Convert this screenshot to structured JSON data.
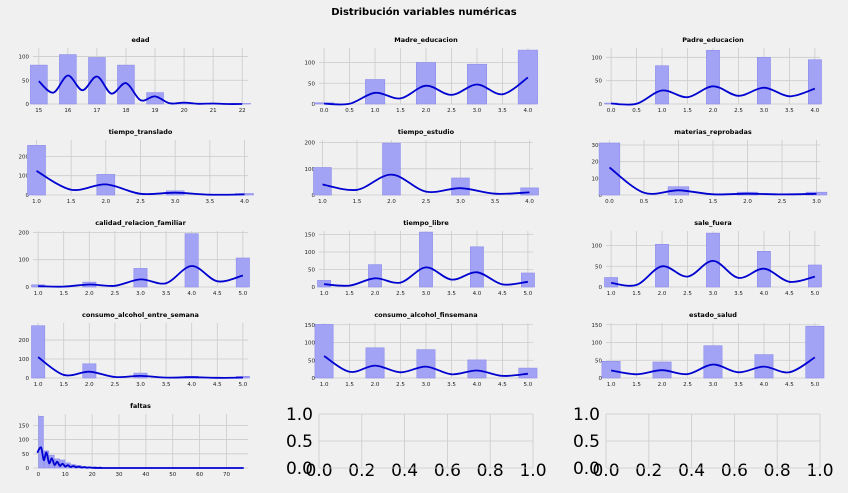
{
  "figure": {
    "title": "Distribución variables numéricas",
    "bar_color": "#a3a3f5",
    "kde_color": "#0000d0",
    "background": "#f0f0f0"
  },
  "chart_data": [
    {
      "type": "bar",
      "title": "edad",
      "x": [
        15,
        16,
        17,
        18,
        19,
        20,
        21,
        22
      ],
      "values": [
        82,
        104,
        98,
        82,
        24,
        3,
        1,
        1
      ],
      "kde": [
        48,
        60,
        58,
        44,
        16,
        3,
        1,
        0
      ],
      "xlim": [
        14.8,
        22.2
      ],
      "ylim": [
        0,
        118
      ],
      "xticks": [
        "15",
        "16",
        "17",
        "18",
        "19",
        "20",
        "21",
        "22"
      ],
      "yticks": [
        0,
        50,
        100
      ],
      "bin_width": 0.58
    },
    {
      "type": "bar",
      "title": "Madre_educacion",
      "x": [
        0,
        1,
        2,
        3,
        4
      ],
      "values": [
        3,
        59,
        100,
        96,
        130
      ],
      "kde": [
        1,
        27,
        44,
        47,
        64
      ],
      "xlim": [
        -0.1,
        4.1
      ],
      "ylim": [
        0,
        135
      ],
      "xticks": [
        "0.0",
        "0.5",
        "1.0",
        "1.5",
        "2.0",
        "2.5",
        "3.0",
        "3.5",
        "4.0"
      ],
      "yticks": [
        0,
        50,
        100
      ],
      "bin_width": 0.38
    },
    {
      "type": "bar",
      "title": "Padre_educacion",
      "x": [
        0,
        1,
        2,
        3,
        4
      ],
      "values": [
        2,
        82,
        115,
        100,
        95
      ],
      "kde": [
        1,
        29,
        38,
        35,
        33
      ],
      "xlim": [
        -0.1,
        4.1
      ],
      "ylim": [
        0,
        120
      ],
      "xticks": [
        "0.0",
        "0.5",
        "1.0",
        "1.5",
        "2.0",
        "2.5",
        "3.0",
        "3.5",
        "4.0"
      ],
      "yticks": [
        0,
        50,
        100
      ],
      "bin_width": 0.26
    },
    {
      "type": "bar",
      "title": "tiempo_translado",
      "x": [
        1,
        2,
        3,
        4
      ],
      "values": [
        257,
        107,
        22,
        8
      ],
      "kde": [
        125,
        55,
        12,
        3
      ],
      "xlim": [
        0.95,
        4.05
      ],
      "ylim": [
        0,
        285
      ],
      "xticks": [
        "1.0",
        "1.5",
        "2.0",
        "2.5",
        "3.0",
        "3.5",
        "4.0"
      ],
      "yticks": [
        0,
        100,
        200
      ],
      "bin_width": 0.26
    },
    {
      "type": "bar",
      "title": "tiempo_estudio",
      "x": [
        1,
        2,
        3,
        4
      ],
      "values": [
        105,
        198,
        65,
        27
      ],
      "kde": [
        40,
        78,
        26,
        10
      ],
      "xlim": [
        0.95,
        4.05
      ],
      "ylim": [
        0,
        210
      ],
      "xticks": [
        "1.0",
        "1.5",
        "2.0",
        "2.5",
        "3.0",
        "3.5",
        "4.0"
      ],
      "yticks": [
        0,
        100,
        200
      ],
      "bin_width": 0.26
    },
    {
      "type": "bar",
      "title": "materias_reprobadas",
      "x": [
        0,
        1,
        2,
        3
      ],
      "values": [
        312,
        50,
        17,
        17
      ],
      "kde": [
        165,
        28,
        8,
        7
      ],
      "xlim": [
        -0.05,
        3.05
      ],
      "ylim": [
        0,
        330
      ],
      "xticks": [
        "0.0",
        "0.5",
        "1.0",
        "1.5",
        "2.0",
        "2.5",
        "3.0"
      ],
      "yticks": [
        0,
        100,
        200,
        300
      ],
      "bin_width": 0.3
    },
    {
      "type": "bar",
      "title": "calidad_relacion_familiar",
      "x": [
        1,
        2,
        3,
        4,
        5
      ],
      "values": [
        8,
        18,
        68,
        195,
        106
      ],
      "kde": [
        3,
        9,
        28,
        77,
        42
      ],
      "xlim": [
        0.9,
        5.1
      ],
      "ylim": [
        0,
        205
      ],
      "xticks": [
        "1.0",
        "1.5",
        "2.0",
        "2.5",
        "3.0",
        "3.5",
        "4.0",
        "4.5",
        "5.0"
      ],
      "yticks": [
        0,
        100,
        200
      ],
      "bin_width": 0.26
    },
    {
      "type": "bar",
      "title": "tiempo_libre",
      "x": [
        1,
        2,
        3,
        4,
        5
      ],
      "values": [
        19,
        64,
        157,
        115,
        40
      ],
      "kde": [
        8,
        25,
        56,
        42,
        15
      ],
      "xlim": [
        0.9,
        5.1
      ],
      "ylim": [
        0,
        160
      ],
      "xticks": [
        "1.0",
        "1.5",
        "2.0",
        "2.5",
        "3.0",
        "3.5",
        "4.0",
        "4.5",
        "5.0"
      ],
      "yticks": [
        0,
        50,
        100,
        150
      ],
      "bin_width": 0.26
    },
    {
      "type": "bar",
      "title": "sale_fuera",
      "x": [
        1,
        2,
        3,
        4,
        5
      ],
      "values": [
        23,
        103,
        130,
        86,
        53
      ],
      "kde": [
        10,
        50,
        63,
        44,
        25
      ],
      "xlim": [
        0.9,
        5.1
      ],
      "ylim": [
        0,
        135
      ],
      "xticks": [
        "1.0",
        "1.5",
        "2.0",
        "2.5",
        "3.0",
        "3.5",
        "4.0",
        "4.5",
        "5.0"
      ],
      "yticks": [
        0,
        50,
        100
      ],
      "bin_width": 0.26
    },
    {
      "type": "bar",
      "title": "consumo_alcohol_entre_semana",
      "x": [
        1,
        2,
        3,
        4,
        5
      ],
      "values": [
        276,
        75,
        26,
        9,
        9
      ],
      "kde": [
        110,
        33,
        11,
        4,
        2
      ],
      "xlim": [
        0.9,
        5.1
      ],
      "ylim": [
        0,
        290
      ],
      "xticks": [
        "1.0",
        "1.5",
        "2.0",
        "2.5",
        "3.0",
        "3.5",
        "4.0",
        "4.5",
        "5.0"
      ],
      "yticks": [
        0,
        100,
        200
      ],
      "bin_width": 0.26
    },
    {
      "type": "bar",
      "title": "consumo_alcohol_finsemana",
      "x": [
        1,
        2,
        3,
        4,
        5
      ],
      "values": [
        151,
        85,
        80,
        51,
        28
      ],
      "kde": [
        62,
        35,
        32,
        21,
        12
      ],
      "xlim": [
        0.9,
        5.1
      ],
      "ylim": [
        0,
        155
      ],
      "xticks": [
        "1.0",
        "1.5",
        "2.0",
        "2.5",
        "3.0",
        "3.5",
        "4.0",
        "4.5",
        "5.0"
      ],
      "yticks": [
        0,
        50,
        100,
        150
      ],
      "bin_width": 0.36
    },
    {
      "type": "bar",
      "title": "estado_salud",
      "x": [
        1,
        2,
        3,
        4,
        5
      ],
      "values": [
        47,
        45,
        91,
        66,
        146
      ],
      "kde": [
        21,
        22,
        38,
        32,
        58
      ],
      "xlim": [
        0.9,
        5.1
      ],
      "ylim": [
        0,
        155
      ],
      "xticks": [
        "1.0",
        "1.5",
        "2.0",
        "2.5",
        "3.0",
        "3.5",
        "4.0",
        "4.5",
        "5.0"
      ],
      "yticks": [
        0,
        50,
        100,
        150
      ],
      "bin_width": 0.36
    },
    {
      "type": "bar",
      "title": "faltas",
      "x": [
        1,
        3,
        5,
        7,
        9,
        11,
        13,
        15,
        17,
        19,
        21,
        23,
        25
      ],
      "values": [
        182,
        60,
        45,
        32,
        28,
        18,
        12,
        9,
        6,
        4,
        3,
        2,
        1
      ],
      "kde": [
        72,
        55,
        34,
        22,
        15,
        10,
        7,
        5,
        3,
        2,
        1,
        1,
        0
      ],
      "xlim": [
        -2,
        78
      ],
      "ylim": [
        0,
        190
      ],
      "xticks": [
        "0",
        "10",
        "20",
        "30",
        "40",
        "50",
        "60",
        "70"
      ],
      "xtick_values": [
        0,
        10,
        20,
        30,
        40,
        50,
        60,
        70
      ],
      "yticks": [
        0,
        50,
        100,
        150
      ],
      "bin_width": 1.8
    }
  ],
  "empty_axes": {
    "xticks": [
      "0.0",
      "0.2",
      "0.4",
      "0.6",
      "0.8",
      "1.0"
    ],
    "yticks": [
      "0.0",
      "0.5",
      "1.0"
    ]
  }
}
